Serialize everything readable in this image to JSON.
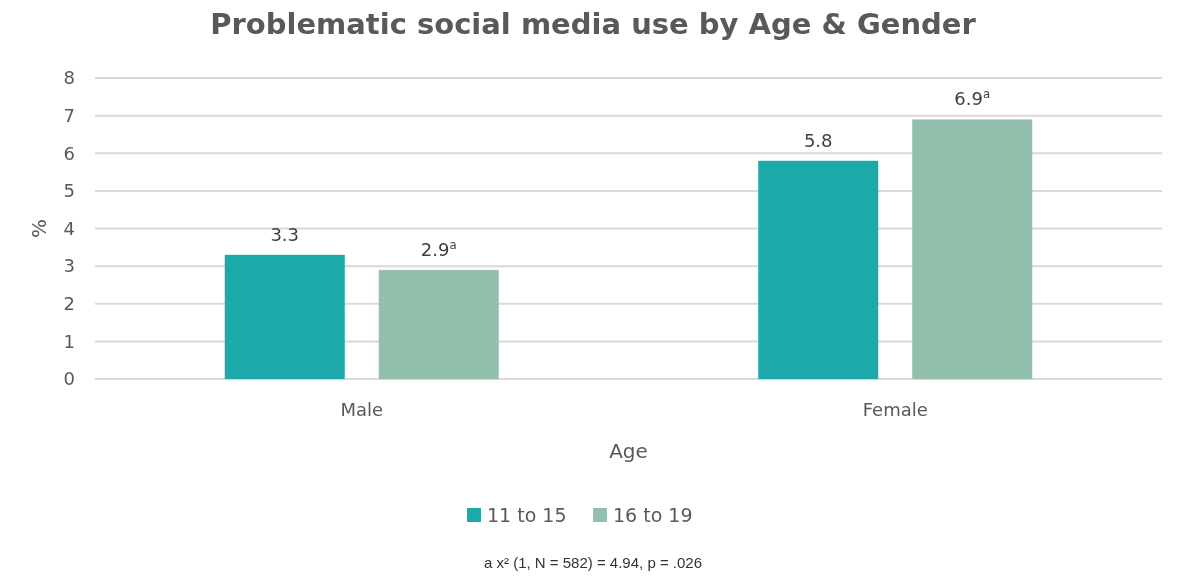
{
  "chart_data": {
    "type": "bar",
    "title": "Problematic social media use by Age & Gender",
    "xlabel": "Age",
    "ylabel": "%",
    "categories": [
      "Male",
      "Female"
    ],
    "series": [
      {
        "name": "11 to 15",
        "color": "#1ca9aa",
        "values": [
          3.3,
          5.8
        ],
        "value_labels": [
          "3.3",
          "5.8"
        ]
      },
      {
        "name": "16 to 19",
        "color": "#92c0ad",
        "values": [
          2.9,
          6.9
        ],
        "value_labels": [
          "2.9$^{a}$",
          "6.9$^{a}$"
        ]
      }
    ],
    "ylim": [
      0,
      8
    ],
    "yticks": [
      0,
      1,
      2,
      3,
      4,
      5,
      6,
      7,
      8
    ],
    "grid": "y",
    "legend": "bottom",
    "annotations": [
      "a x² (1, N = 582) = 4.94, p = .026"
    ]
  }
}
